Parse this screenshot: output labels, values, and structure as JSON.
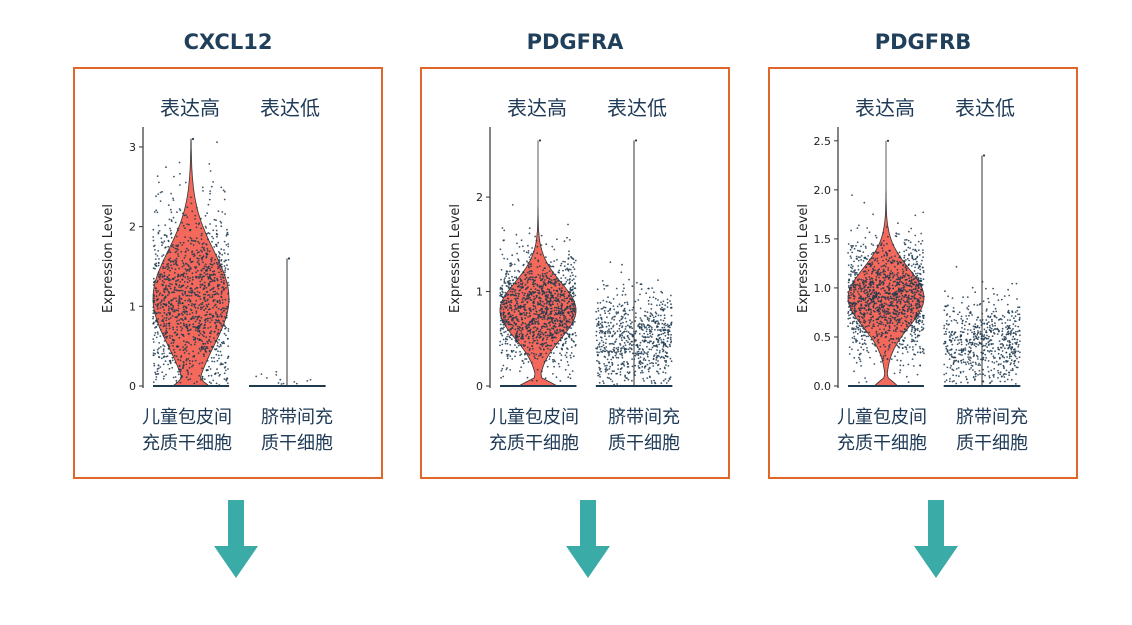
{
  "colors": {
    "frame": "#e0662a",
    "violin": "#f4695b",
    "points": "#1e3a4f",
    "arrow": "#3aaba6",
    "title": "#1f3f5b"
  },
  "expression_high_label": "表达高",
  "expression_low_label": "表达低",
  "group1_label": [
    "儿童包皮间",
    "充质干细胞"
  ],
  "group2_label": [
    "脐带间充",
    "质干细胞"
  ],
  "chart_data": [
    {
      "type": "violin",
      "title": "CXCL12",
      "ylabel": "Expression Level",
      "ylim": [
        0,
        3.2
      ],
      "yticks": [
        "0",
        "1",
        "2",
        "3"
      ],
      "categories": [
        "儿童包皮间充质干细胞",
        "脐带间充质干细胞"
      ],
      "groups": [
        {
          "max": 3.1,
          "median": 1.1,
          "q1": 0.7,
          "q3": 1.5,
          "zero_fraction": 0.05,
          "violin_visible": true
        },
        {
          "max": 1.6,
          "median": 0.0,
          "q1": 0.0,
          "q3": 0.0,
          "zero_fraction": 0.92,
          "violin_visible": false
        }
      ]
    },
    {
      "type": "violin",
      "title": "PDGFRA",
      "ylabel": "Expression Level",
      "ylim": [
        0,
        2.7
      ],
      "yticks": [
        "0",
        "1",
        "2"
      ],
      "categories": [
        "儿童包皮间充质干细胞",
        "脐带间充质干细胞"
      ],
      "groups": [
        {
          "max": 2.6,
          "median": 0.8,
          "q1": 0.6,
          "q3": 1.0,
          "zero_fraction": 0.08,
          "violin_visible": true
        },
        {
          "max": 2.6,
          "median": 0.5,
          "q1": 0.35,
          "q3": 0.7,
          "zero_fraction": 0.2,
          "violin_visible": false
        }
      ]
    },
    {
      "type": "violin",
      "title": "PDGFRB",
      "ylabel": "Expression Level",
      "ylim": [
        0,
        2.6
      ],
      "yticks": [
        "0.0",
        "0.5",
        "1.0",
        "1.5",
        "2.0",
        "2.5"
      ],
      "categories": [
        "儿童包皮间充质干细胞",
        "脐带间充质干细胞"
      ],
      "groups": [
        {
          "max": 2.5,
          "median": 0.9,
          "q1": 0.7,
          "q3": 1.1,
          "zero_fraction": 0.05,
          "violin_visible": true
        },
        {
          "max": 2.35,
          "median": 0.45,
          "q1": 0.3,
          "q3": 0.6,
          "zero_fraction": 0.3,
          "violin_visible": false
        }
      ]
    }
  ]
}
